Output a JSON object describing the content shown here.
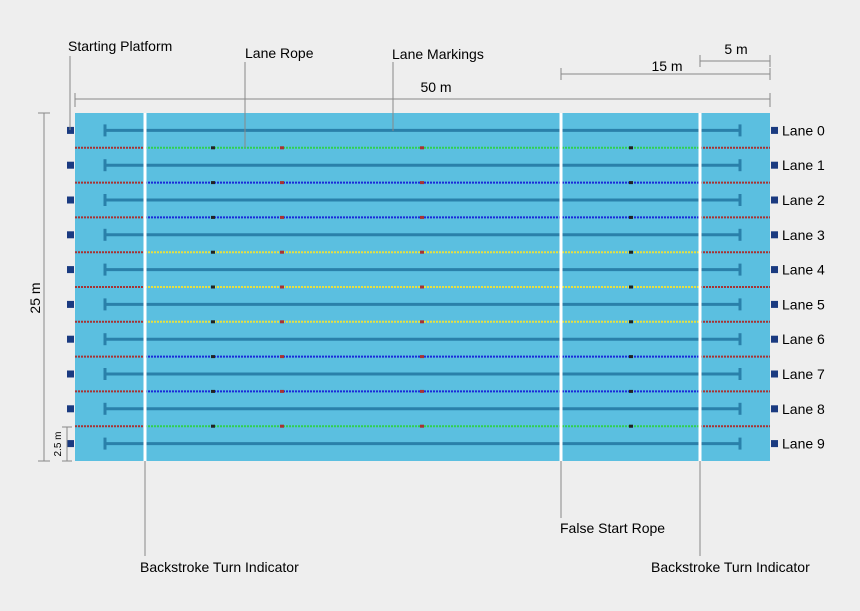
{
  "labels": {
    "starting_platform": "Starting Platform",
    "lane_rope": "Lane Rope",
    "lane_markings": "Lane Markings",
    "false_start_rope": "False Start Rope",
    "backstroke_left": "Backstroke Turn Indicator",
    "backstroke_right": "Backstroke Turn Indicator"
  },
  "dimensions": {
    "length": "50 m",
    "width": "25 m",
    "false_start": "15 m",
    "backstroke": "5 m",
    "lane_width": "2.5 m"
  },
  "lanes": [
    "Lane 0",
    "Lane 1",
    "Lane 2",
    "Lane 3",
    "Lane 4",
    "Lane 5",
    "Lane 6",
    "Lane 7",
    "Lane 8",
    "Lane 9"
  ],
  "colors": {
    "background": "#eeeeee",
    "water": "#5bbfe0",
    "lane_marking": "#2a80aa",
    "platform": "#1a3a80",
    "edge_rope": "#a83232",
    "rope_green": "#30d050",
    "rope_blue": "#1a2ad8",
    "rope_yellow": "#e8e040",
    "rope_bead_red": "#a83232",
    "rope_bead_dark": "#222222",
    "backstroke_line": "#ffffff",
    "leader_line": "#888888"
  },
  "rope_colors": [
    "edge",
    "green",
    "blue",
    "blue",
    "yellow",
    "yellow",
    "yellow",
    "blue",
    "blue",
    "green",
    "edge"
  ]
}
